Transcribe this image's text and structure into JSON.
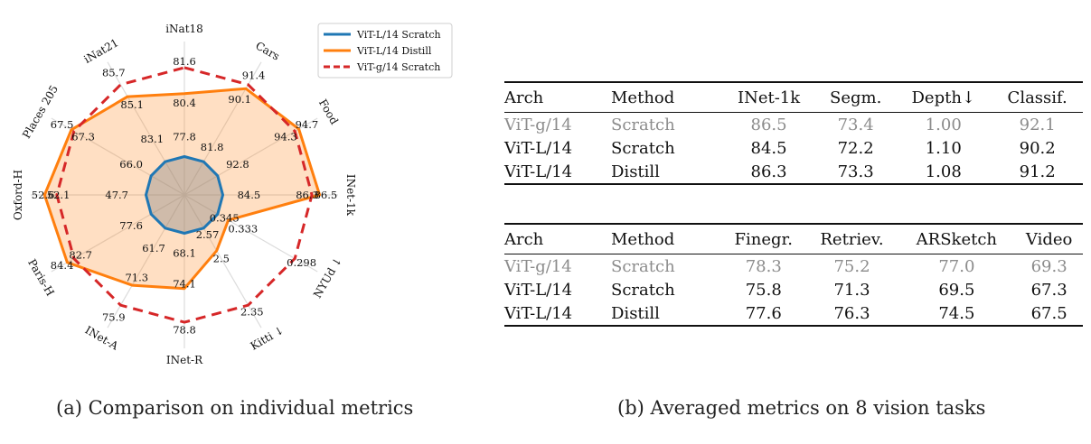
{
  "chart_data": {
    "type": "radar",
    "axes": [
      "iNat18",
      "Cars",
      "Food",
      "INet-1k",
      "NYUd ↓",
      "Kitti ↓",
      "INet-R",
      "INet-A",
      "Paris-H",
      "Oxford-H",
      "Places 205",
      "iNat21"
    ],
    "series": [
      {
        "name": "ViT-L/14 Scratch",
        "color": "#1f77b4",
        "style": "solid"
      },
      {
        "name": "ViT-L/14 Distill",
        "color": "#ff7f0e",
        "style": "solid"
      },
      {
        "name": "ViT-g/14 Scratch",
        "color": "#d62728",
        "style": "dashed"
      }
    ],
    "labels": {
      "scratch_l": [
        "77.8",
        "81.8",
        "92.8",
        "84.5",
        "0.345",
        "2.57",
        "68.1",
        "61.7",
        "77.6",
        "47.7",
        "66.0",
        "83.1"
      ],
      "distill_l": [
        "80.4",
        "90.1",
        "94.3",
        "86.3",
        "0.333",
        "2.5",
        "74.1",
        "71.3",
        "82.7",
        "52.1",
        "67.3",
        "85.1"
      ],
      "scratch_g": [
        "81.6",
        "91.4",
        "94.7",
        "86.5",
        "0.298",
        "2.35",
        "78.8",
        "75.9",
        "84.4",
        "52.6",
        "67.5",
        "85.7"
      ]
    },
    "normalized_radius": {
      "scratch_l": [
        0.25,
        0.25,
        0.25,
        0.25,
        0.25,
        0.25,
        0.25,
        0.25,
        0.25,
        0.25,
        0.25,
        0.25
      ],
      "distill_l": [
        0.66,
        0.8,
        0.86,
        0.88,
        0.33,
        0.42,
        0.61,
        0.68,
        0.88,
        0.91,
        0.85,
        0.74
      ],
      "scratch_g": [
        0.83,
        0.83,
        0.83,
        0.83,
        0.83,
        0.83,
        0.83,
        0.83,
        0.83,
        0.83,
        0.83,
        0.83
      ]
    },
    "legend_position": "top-right"
  },
  "captions": {
    "a": "(a) Comparison on individual metrics",
    "b": "(b) Averaged metrics on 8 vision tasks"
  },
  "table_top": {
    "headers": [
      "Arch",
      "Method",
      "INet-1k",
      "Segm.",
      "Depth↓",
      "Classif."
    ],
    "rows": [
      {
        "arch": "ViT-g/14",
        "method": "Scratch",
        "v": [
          "86.5",
          "73.4",
          "1.00",
          "92.1"
        ]
      },
      {
        "arch": "ViT-L/14",
        "method": "Scratch",
        "v": [
          "84.5",
          "72.2",
          "1.10",
          "90.2"
        ]
      },
      {
        "arch": "ViT-L/14",
        "method": "Distill",
        "v": [
          "86.3",
          "73.3",
          "1.08",
          "91.2"
        ]
      }
    ]
  },
  "table_bottom": {
    "headers": [
      "Arch",
      "Method",
      "Finegr.",
      "Retriev.",
      "ARSketch",
      "Video"
    ],
    "rows": [
      {
        "arch": "ViT-g/14",
        "method": "Scratch",
        "v": [
          "78.3",
          "75.2",
          "77.0",
          "69.3"
        ]
      },
      {
        "arch": "ViT-L/14",
        "method": "Scratch",
        "v": [
          "75.8",
          "71.3",
          "69.5",
          "67.3"
        ]
      },
      {
        "arch": "ViT-L/14",
        "method": "Distill",
        "v": [
          "77.6",
          "76.3",
          "74.5",
          "67.5"
        ]
      }
    ]
  }
}
